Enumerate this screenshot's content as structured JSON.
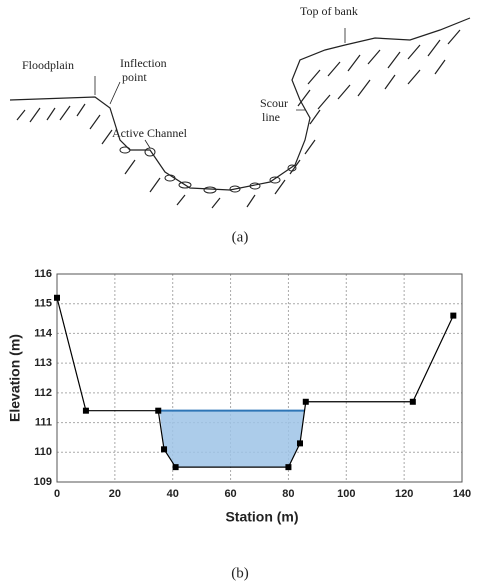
{
  "diagram": {
    "labels": {
      "floodplain": "Floodplain",
      "inflection": [
        "Inflection",
        "point"
      ],
      "top_of_bank": "Top of bank",
      "scour": [
        "Scour",
        "line"
      ],
      "active_channel": "Active Channel"
    },
    "caption": "(a)"
  },
  "chart_data": {
    "type": "line",
    "caption": "(b)",
    "x_label": "Station (m)",
    "y_label": "Elevation (m)",
    "x": [
      0,
      10,
      35,
      37,
      41,
      80,
      84,
      86,
      123,
      137
    ],
    "values": [
      115.2,
      111.4,
      111.4,
      110.1,
      109.5,
      109.5,
      110.3,
      111.7,
      111.7,
      114.6
    ],
    "color": "#000000",
    "water_surface": {
      "x": [
        35.5,
        85.5
      ],
      "level": 111.4,
      "color": "#2e75b6",
      "fill": "#9dc3e6"
    },
    "xlim": [
      0,
      140
    ],
    "xticks": [
      0,
      20,
      40,
      60,
      80,
      100,
      120,
      140
    ],
    "ylim": [
      109,
      116
    ],
    "yticks": [
      109,
      110,
      111,
      112,
      113,
      114,
      115,
      116
    ],
    "grid": true
  }
}
